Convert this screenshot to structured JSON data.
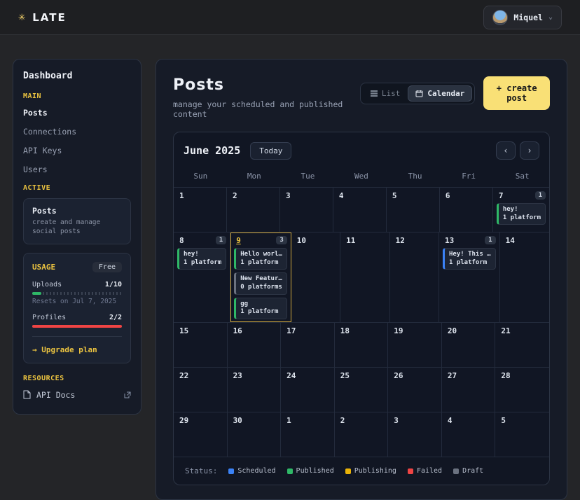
{
  "topbar": {
    "logo": "LATE",
    "user_name": "Miquel"
  },
  "sidebar": {
    "title": "Dashboard",
    "main_label": "MAIN",
    "nav": [
      {
        "label": "Posts",
        "active": true
      },
      {
        "label": "Connections",
        "active": false
      },
      {
        "label": "API Keys",
        "active": false
      },
      {
        "label": "Users",
        "active": false
      }
    ],
    "active_label": "ACTIVE",
    "active_card": {
      "title": "Posts",
      "description": "create and manage social posts"
    },
    "usage": {
      "title": "USAGE",
      "plan_badge": "Free",
      "uploads_label": "Uploads",
      "uploads_value": "1/10",
      "uploads_pct": 10,
      "uploads_color": "#2fb867",
      "resets_note": "Resets on Jul 7, 2025",
      "profiles_label": "Profiles",
      "profiles_value": "2/2",
      "profiles_pct": 100,
      "profiles_color": "#ef4444",
      "upgrade_label": "→ Upgrade plan"
    },
    "resources_label": "RESOURCES",
    "resources": [
      {
        "label": "API Docs"
      }
    ]
  },
  "main": {
    "title": "Posts",
    "subtitle": "manage your scheduled and published content",
    "list_label": "List",
    "calendar_label": "Calendar",
    "create_button": "+ create post"
  },
  "calendar": {
    "month_title": "June 2025",
    "today_button": "Today",
    "prev_icon": "‹",
    "next_icon": "›",
    "weekdays": [
      "Sun",
      "Mon",
      "Tue",
      "Wed",
      "Thu",
      "Fri",
      "Sat"
    ],
    "status_colors": {
      "scheduled": "#3b82f6",
      "published": "#2fb867",
      "publishing": "#eab308",
      "failed": "#ef4444",
      "draft": "#6b7280"
    },
    "weeks": [
      [
        {
          "day": "1"
        },
        {
          "day": "2"
        },
        {
          "day": "3"
        },
        {
          "day": "4"
        },
        {
          "day": "5"
        },
        {
          "day": "6"
        },
        {
          "day": "7",
          "badge": "1",
          "events": [
            {
              "title": "hey!",
              "subtitle": "1 platform",
              "status": "published"
            }
          ]
        }
      ],
      [
        {
          "day": "8",
          "badge": "1",
          "events": [
            {
              "title": "hey!",
              "subtitle": "1 platform",
              "status": "published"
            }
          ]
        },
        {
          "day": "9",
          "today": true,
          "badge": "3",
          "events": [
            {
              "title": "Hello worl…",
              "subtitle": "1 platform",
              "status": "published"
            },
            {
              "title": "New Featur…",
              "subtitle": "0 platforms",
              "status": "draft"
            },
            {
              "title": "gg",
              "subtitle": "1 platform",
              "status": "published"
            }
          ]
        },
        {
          "day": "10"
        },
        {
          "day": "11"
        },
        {
          "day": "12"
        },
        {
          "day": "13",
          "badge": "1",
          "events": [
            {
              "title": "Hey! This …",
              "subtitle": "1 platform",
              "status": "scheduled"
            }
          ]
        },
        {
          "day": "14"
        }
      ],
      [
        {
          "day": "15"
        },
        {
          "day": "16"
        },
        {
          "day": "17"
        },
        {
          "day": "18"
        },
        {
          "day": "19"
        },
        {
          "day": "20"
        },
        {
          "day": "21"
        }
      ],
      [
        {
          "day": "22"
        },
        {
          "day": "23"
        },
        {
          "day": "24"
        },
        {
          "day": "25"
        },
        {
          "day": "26"
        },
        {
          "day": "27"
        },
        {
          "day": "28"
        }
      ],
      [
        {
          "day": "29"
        },
        {
          "day": "30"
        },
        {
          "day": "1"
        },
        {
          "day": "2"
        },
        {
          "day": "3"
        },
        {
          "day": "4"
        },
        {
          "day": "5"
        }
      ]
    ]
  },
  "legend": {
    "label": "Status:",
    "items": [
      {
        "label": "Scheduled",
        "color": "#3b82f6"
      },
      {
        "label": "Published",
        "color": "#2fb867"
      },
      {
        "label": "Publishing",
        "color": "#eab308"
      },
      {
        "label": "Failed",
        "color": "#ef4444"
      },
      {
        "label": "Draft",
        "color": "#6b7280"
      }
    ]
  }
}
